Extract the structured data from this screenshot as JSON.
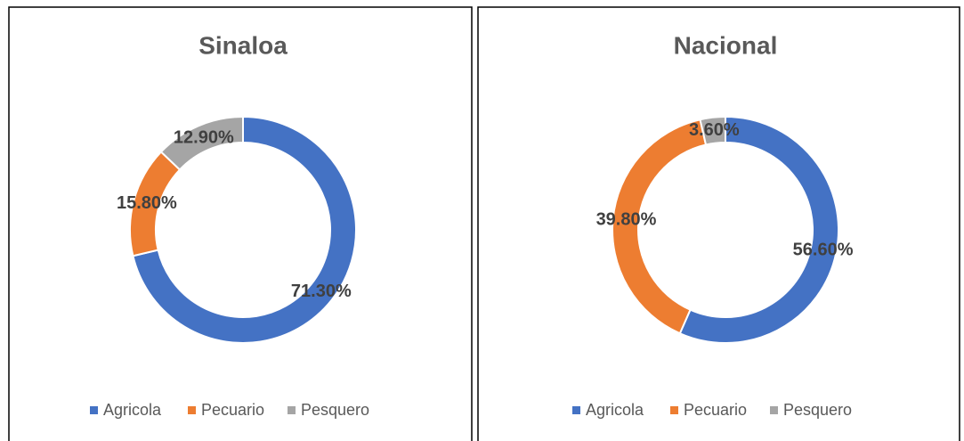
{
  "chart_data": [
    {
      "type": "donut",
      "title": "Sinaloa",
      "categories": [
        "Agricola",
        "Pecuario",
        "Pesquero"
      ],
      "values": [
        71.3,
        15.8,
        12.9
      ],
      "value_labels": [
        "71.30%",
        "15.80%",
        "12.90%"
      ],
      "colors": [
        "#4472c4",
        "#ed7d31",
        "#a5a5a5"
      ],
      "legend": "bottom"
    },
    {
      "type": "donut",
      "title": "Nacional",
      "categories": [
        "Agricola",
        "Pecuario",
        "Pesquero"
      ],
      "values": [
        56.6,
        39.8,
        3.6
      ],
      "value_labels": [
        "56.60%",
        "39.80%",
        "3.60%"
      ],
      "colors": [
        "#4472c4",
        "#ed7d31",
        "#a5a5a5"
      ],
      "legend": "bottom"
    }
  ]
}
